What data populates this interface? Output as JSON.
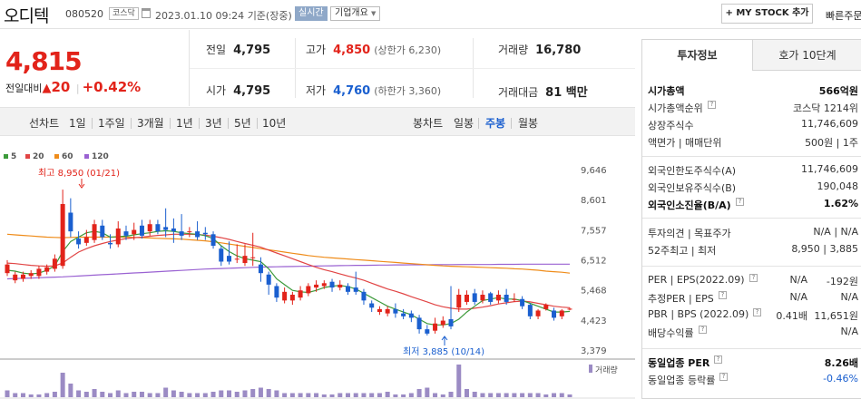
{
  "header": {
    "name": "오디텍",
    "code": "080520",
    "market": "코스닥",
    "datetime": "2023.01.10 09:24",
    "basis": "기준(장중)",
    "realtime_label": "실시간",
    "company_info_label": "기업개요",
    "my_stock_label": "+ MY STOCK 추가",
    "quick_search_label": "빠른주문"
  },
  "price": {
    "current": "4,815",
    "diff_label": "전일대비",
    "diff_value": "20",
    "diff_rate": "+0.42%"
  },
  "summary": {
    "prev_label": "전일",
    "prev_value": "4,795",
    "high_label": "고가",
    "high_value": "4,850",
    "upper_limit": "(상한가 6,230)",
    "volume_label": "거래량",
    "volume_value": "16,780",
    "open_label": "시가",
    "open_value": "4,795",
    "low_label": "저가",
    "low_value": "4,760",
    "lower_limit": "(하한가 3,360)",
    "amount_label": "거래대금",
    "amount_value": "81 백만"
  },
  "chart_tabs": {
    "line_label": "선차트",
    "line_periods": [
      "1일",
      "1주일",
      "3개월",
      "1년",
      "3년",
      "5년",
      "10년"
    ],
    "candle_label": "봉차트",
    "candle_periods": [
      "일봉",
      "주봉",
      "월봉"
    ],
    "active_candle": "주봉"
  },
  "colors": {
    "up": "#e2231a",
    "down": "#1a5fcf",
    "ma5": "#3c9a3a",
    "ma20": "#e14545",
    "ma60": "#ef8c1a",
    "ma120": "#9a62d2",
    "volume": "#9b8bc4"
  },
  "chart_data": {
    "type": "candlestick",
    "period": "weekly",
    "legend": [
      "5",
      "20",
      "60",
      "120"
    ],
    "y_ticks": [
      "9,646",
      "8,601",
      "7,557",
      "6,512",
      "5,468",
      "4,423",
      "3,379"
    ],
    "ylim": [
      3379,
      9646
    ],
    "high_annotation": "최고 8,950 (01/21)",
    "low_annotation": "최저 3,885 (10/14)",
    "volume_label": "거래량",
    "candles": [
      {
        "o": 6050,
        "c": 6350,
        "h": 6500,
        "l": 5950
      },
      {
        "o": 5800,
        "c": 6000,
        "h": 6100,
        "l": 5700
      },
      {
        "o": 5850,
        "c": 6000,
        "h": 6100,
        "l": 5750
      },
      {
        "o": 5950,
        "c": 6050,
        "h": 6150,
        "l": 5850
      },
      {
        "o": 5950,
        "c": 6200,
        "h": 6300,
        "l": 5850
      },
      {
        "o": 6100,
        "c": 6250,
        "h": 6350,
        "l": 6000
      },
      {
        "o": 6200,
        "c": 6550,
        "h": 6700,
        "l": 6100
      },
      {
        "o": 6300,
        "c": 8450,
        "h": 8950,
        "l": 6200
      },
      {
        "o": 8150,
        "c": 7500,
        "h": 8650,
        "l": 7300
      },
      {
        "o": 7250,
        "c": 7050,
        "h": 7500,
        "l": 6900
      },
      {
        "o": 7100,
        "c": 7300,
        "h": 7550,
        "l": 7000
      },
      {
        "o": 7200,
        "c": 7750,
        "h": 7900,
        "l": 7100
      },
      {
        "o": 7700,
        "c": 7300,
        "h": 7900,
        "l": 7200
      },
      {
        "o": 7100,
        "c": 7050,
        "h": 7400,
        "l": 6900
      },
      {
        "o": 7050,
        "c": 7600,
        "h": 7850,
        "l": 6950
      },
      {
        "o": 7500,
        "c": 7350,
        "h": 7700,
        "l": 7200
      },
      {
        "o": 7400,
        "c": 7550,
        "h": 7800,
        "l": 7200
      },
      {
        "o": 7700,
        "c": 7350,
        "h": 7900,
        "l": 7250
      },
      {
        "o": 7500,
        "c": 7750,
        "h": 7900,
        "l": 7350
      },
      {
        "o": 7750,
        "c": 7500,
        "h": 7900,
        "l": 7400
      },
      {
        "o": 7650,
        "c": 7550,
        "h": 8300,
        "l": 7300
      },
      {
        "o": 7600,
        "c": 7500,
        "h": 7950,
        "l": 7100
      },
      {
        "o": 7500,
        "c": 7350,
        "h": 8100,
        "l": 7200
      },
      {
        "o": 7500,
        "c": 7500,
        "h": 7650,
        "l": 7300
      },
      {
        "o": 7500,
        "c": 7300,
        "h": 7850,
        "l": 7200
      },
      {
        "o": 7450,
        "c": 7400,
        "h": 7650,
        "l": 7200
      },
      {
        "o": 7400,
        "c": 7000,
        "h": 7500,
        "l": 6900
      },
      {
        "o": 6900,
        "c": 6450,
        "h": 7000,
        "l": 6300
      },
      {
        "o": 6650,
        "c": 6450,
        "h": 7150,
        "l": 6350
      },
      {
        "o": 6550,
        "c": 6550,
        "h": 7050,
        "l": 6400
      },
      {
        "o": 6400,
        "c": 6650,
        "h": 7050,
        "l": 6300
      },
      {
        "o": 6600,
        "c": 6600,
        "h": 7450,
        "l": 6300
      },
      {
        "o": 6350,
        "c": 6050,
        "h": 6600,
        "l": 5750
      },
      {
        "o": 6000,
        "c": 5650,
        "h": 6100,
        "l": 5300
      },
      {
        "o": 5600,
        "c": 5200,
        "h": 5700,
        "l": 5050
      },
      {
        "o": 5100,
        "c": 5400,
        "h": 5550,
        "l": 5000
      },
      {
        "o": 5100,
        "c": 5300,
        "h": 5400,
        "l": 4950
      },
      {
        "o": 5200,
        "c": 5450,
        "h": 5600,
        "l": 5100
      },
      {
        "o": 5350,
        "c": 5600,
        "h": 5700,
        "l": 5250
      },
      {
        "o": 5550,
        "c": 5650,
        "h": 5800,
        "l": 5400
      },
      {
        "o": 5600,
        "c": 5700,
        "h": 5800,
        "l": 5500
      },
      {
        "o": 5750,
        "c": 5550,
        "h": 5850,
        "l": 5400
      },
      {
        "o": 5550,
        "c": 5650,
        "h": 5800,
        "l": 5450
      },
      {
        "o": 5600,
        "c": 5400,
        "h": 5700,
        "l": 5300
      },
      {
        "o": 5550,
        "c": 5400,
        "h": 6100,
        "l": 5300
      },
      {
        "o": 5400,
        "c": 5100,
        "h": 5500,
        "l": 4950
      },
      {
        "o": 5000,
        "c": 4850,
        "h": 5100,
        "l": 4700
      },
      {
        "o": 4700,
        "c": 4800,
        "h": 4900,
        "l": 4600
      },
      {
        "o": 4650,
        "c": 4800,
        "h": 4900,
        "l": 4550
      },
      {
        "o": 4800,
        "c": 4650,
        "h": 5000,
        "l": 4500
      },
      {
        "o": 4650,
        "c": 4550,
        "h": 4800,
        "l": 4450
      },
      {
        "o": 4650,
        "c": 4500,
        "h": 4750,
        "l": 4350
      },
      {
        "o": 4500,
        "c": 4100,
        "h": 4600,
        "l": 3950
      },
      {
        "o": 4100,
        "c": 3950,
        "h": 4250,
        "l": 3885
      },
      {
        "o": 4050,
        "c": 4300,
        "h": 4500,
        "l": 3950
      },
      {
        "o": 4250,
        "c": 4400,
        "h": 4550,
        "l": 4150
      },
      {
        "o": 4450,
        "c": 4200,
        "h": 5600,
        "l": 4100
      },
      {
        "o": 4850,
        "c": 5300,
        "h": 5500,
        "l": 4700
      },
      {
        "o": 5050,
        "c": 5300,
        "h": 5450,
        "l": 4950
      },
      {
        "o": 5350,
        "c": 5050,
        "h": 5500,
        "l": 4950
      },
      {
        "o": 5100,
        "c": 5300,
        "h": 5450,
        "l": 5000
      },
      {
        "o": 5350,
        "c": 5050,
        "h": 5400,
        "l": 4950
      },
      {
        "o": 5100,
        "c": 5300,
        "h": 5450,
        "l": 5000
      },
      {
        "o": 5300,
        "c": 5050,
        "h": 5500,
        "l": 4950
      },
      {
        "o": 5150,
        "c": 5150,
        "h": 5350,
        "l": 5050
      },
      {
        "o": 5150,
        "c": 4900,
        "h": 5250,
        "l": 4800
      },
      {
        "o": 4950,
        "c": 4550,
        "h": 5000,
        "l": 4450
      },
      {
        "o": 4550,
        "c": 4750,
        "h": 4800,
        "l": 4450
      },
      {
        "o": 4800,
        "c": 4950,
        "h": 5000,
        "l": 4750
      },
      {
        "o": 4750,
        "c": 4500,
        "h": 4850,
        "l": 4400
      },
      {
        "o": 4550,
        "c": 4750,
        "h": 4800,
        "l": 4450
      },
      {
        "o": 4795,
        "c": 4815,
        "h": 4850,
        "l": 4760
      }
    ],
    "ma5": [
      6150,
      6120,
      6050,
      6020,
      6050,
      6150,
      6300,
      6800,
      7150,
      7300,
      7450,
      7500,
      7450,
      7300,
      7320,
      7330,
      7380,
      7420,
      7450,
      7500,
      7520,
      7500,
      7450,
      7420,
      7400,
      7350,
      7250,
      7000,
      6800,
      6650,
      6550,
      6500,
      6450,
      6200,
      5850,
      5650,
      5450,
      5400,
      5380,
      5450,
      5550,
      5600,
      5620,
      5580,
      5500,
      5350,
      5200,
      5050,
      4900,
      4800,
      4700,
      4600,
      4450,
      4300,
      4250,
      4250,
      4300,
      4450,
      4700,
      4900,
      5100,
      5150,
      5200,
      5150,
      5150,
      5100,
      5000,
      4900,
      4800,
      4700,
      4700,
      4720
    ],
    "ma20": [
      6400,
      6380,
      6350,
      6320,
      6300,
      6290,
      6300,
      6400,
      6600,
      6780,
      6900,
      7000,
      7080,
      7150,
      7200,
      7250,
      7280,
      7300,
      7330,
      7360,
      7380,
      7400,
      7400,
      7400,
      7390,
      7370,
      7330,
      7280,
      7220,
      7150,
      7080,
      7020,
      6950,
      6850,
      6750,
      6650,
      6550,
      6450,
      6350,
      6250,
      6170,
      6100,
      6020,
      5950,
      5880,
      5800,
      5700,
      5600,
      5500,
      5420,
      5330,
      5230,
      5140,
      5050,
      4950,
      4880,
      4830,
      4800,
      4800,
      4830,
      4870,
      4920,
      4980,
      5020,
      5060,
      5080,
      5050,
      5000,
      4950,
      4900,
      4870,
      4850
    ],
    "ma60": [
      7400,
      7380,
      7360,
      7340,
      7320,
      7300,
      7290,
      7280,
      7290,
      7300,
      7300,
      7300,
      7300,
      7300,
      7300,
      7300,
      7290,
      7280,
      7270,
      7260,
      7250,
      7240,
      7230,
      7210,
      7190,
      7170,
      7140,
      7100,
      7060,
      7020,
      6980,
      6940,
      6900,
      6860,
      6820,
      6780,
      6740,
      6700,
      6660,
      6630,
      6600,
      6580,
      6560,
      6540,
      6520,
      6500,
      6480,
      6460,
      6440,
      6420,
      6400,
      6380,
      6360,
      6340,
      6320,
      6300,
      6290,
      6280,
      6270,
      6260,
      6250,
      6240,
      6230,
      6220,
      6200,
      6190,
      6170,
      6150,
      6120,
      6100,
      6080,
      6050
    ],
    "ma120": [
      5850,
      5860,
      5870,
      5880,
      5890,
      5900,
      5910,
      5920,
      5935,
      5950,
      5965,
      5980,
      5995,
      6010,
      6025,
      6040,
      6055,
      6070,
      6085,
      6100,
      6115,
      6130,
      6145,
      6160,
      6175,
      6190,
      6200,
      6210,
      6220,
      6230,
      6240,
      6250,
      6260,
      6265,
      6270,
      6275,
      6280,
      6285,
      6290,
      6295,
      6300,
      6305,
      6310,
      6315,
      6320,
      6320,
      6325,
      6330,
      6330,
      6335,
      6335,
      6340,
      6340,
      6340,
      6345,
      6345,
      6345,
      6350,
      6350,
      6350,
      6350,
      6350,
      6355,
      6355,
      6355,
      6360,
      6360,
      6360,
      6360,
      6360,
      6360,
      6360
    ],
    "volume": [
      5,
      3,
      3,
      2,
      2,
      3,
      4,
      18,
      10,
      5,
      4,
      6,
      4,
      3,
      5,
      3,
      4,
      4,
      3,
      3,
      7,
      5,
      4,
      3,
      3,
      3,
      4,
      5,
      5,
      4,
      5,
      6,
      7,
      6,
      5,
      3,
      3,
      3,
      3,
      3,
      2,
      2,
      3,
      3,
      3,
      3,
      3,
      3,
      4,
      2,
      2,
      3,
      6,
      7,
      3,
      2,
      4,
      24,
      6,
      4,
      3,
      3,
      3,
      3,
      3,
      3,
      3,
      3,
      2,
      3,
      3,
      2
    ]
  },
  "side": {
    "tab_invest": "투자정보",
    "tab_orderbook": "호가 10단계",
    "rows1": [
      {
        "l": "시가총액",
        "r": "566억원",
        "bold": true
      },
      {
        "l": "시가총액순위",
        "r": "코스닥 1214위",
        "q": true
      },
      {
        "l": "상장주식수",
        "r": "11,746,609"
      },
      {
        "l": "액면가 | 매매단위",
        "r": "500원 | 1주"
      }
    ],
    "rows2": [
      {
        "l": "외국인한도주식수(A)",
        "r": "11,746,609"
      },
      {
        "l": "외국인보유주식수(B)",
        "r": "190,048"
      },
      {
        "l": "외국인소진율(B/A)",
        "r": "1.62%",
        "bold": true,
        "q": true
      }
    ],
    "rows3": [
      {
        "l": "투자의견 | 목표주가",
        "r": "N/A | N/A"
      },
      {
        "l": "52주최고 | 최저",
        "r": "8,950 | 3,885"
      }
    ],
    "rows4": [
      {
        "l": "PER | EPS(2022.09)",
        "m": "N/A",
        "r": "-192원",
        "q": true
      },
      {
        "l": "추정PER | EPS",
        "m": "N/A",
        "r": "N/A",
        "q": true
      },
      {
        "l": "PBR | BPS (2022.09)",
        "m": "0.41배",
        "r": "11,651원",
        "q": true
      },
      {
        "l": "배당수익률",
        "r": "N/A",
        "q": true
      }
    ],
    "rows5": [
      {
        "l": "동일업종 PER",
        "r": "8.26배",
        "bold": true,
        "q": true
      },
      {
        "l": "동일업종 등락률",
        "r": "-0.46%",
        "dn": true,
        "q": true
      }
    ]
  }
}
